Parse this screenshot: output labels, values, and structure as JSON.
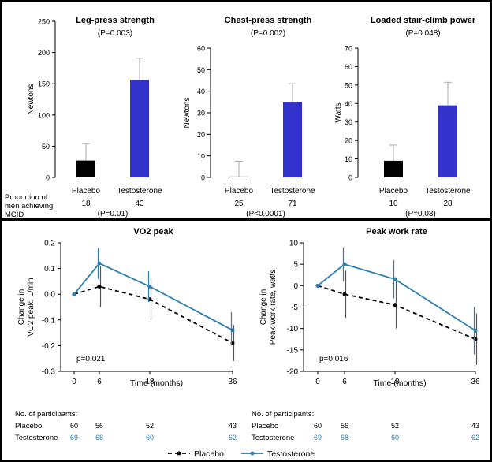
{
  "colors": {
    "placebo": "#000000",
    "testosterone_bar": "#3333cc",
    "testosterone_line": "#2a7fae",
    "testosterone_count": "#2a7fae",
    "error": "#aaaaaa"
  },
  "top_row": {
    "proportion_label": [
      "Proportion of",
      "men achieving",
      "MCID"
    ],
    "panels": [
      {
        "title": "Leg-press strength",
        "pvalue": "(P=0.003)",
        "ylabel": "Newtons",
        "yticks": [
          "0",
          "50",
          "100",
          "150",
          "200",
          "250"
        ],
        "categories": [
          "Placebo",
          "Testosterone"
        ],
        "counts": [
          "18",
          "43"
        ],
        "mcid_p": "(P=0.01)"
      },
      {
        "title": "Chest-press strength",
        "pvalue": "(P=0.002)",
        "ylabel": "Newtons",
        "yticks": [
          "0",
          "10",
          "20",
          "30",
          "40",
          "50",
          "60"
        ],
        "categories": [
          "Placebo",
          "Testosterone"
        ],
        "counts": [
          "25",
          "71"
        ],
        "mcid_p": "(P<0.0001)"
      },
      {
        "title": "Loaded stair-climb power",
        "pvalue": "(P=0.048)",
        "ylabel": "Watts",
        "yticks": [
          "0",
          "10",
          "20",
          "30",
          "40",
          "50",
          "60",
          "70"
        ],
        "categories": [
          "Placebo",
          "Testosterone"
        ],
        "counts": [
          "10",
          "28"
        ],
        "mcid_p": "(P=0.03)"
      }
    ]
  },
  "bottom_row": {
    "panels": [
      {
        "title": "VO2 peak",
        "ylabel": [
          "Change in",
          "VO2 peak, L/min"
        ],
        "pvalue": "p=0.021",
        "yticks": [
          "-0.3",
          "-0.2",
          "-0.1",
          "0.0",
          "0.1",
          "0.2"
        ],
        "xticks": [
          "0",
          "6",
          "18",
          "36"
        ],
        "xlabel": "Time (months)"
      },
      {
        "title": "Peak work rate",
        "ylabel": [
          "Change in",
          "Peak work rate, watts"
        ],
        "pvalue": "p=0.016",
        "yticks": [
          "-20",
          "-15",
          "-10",
          "-5",
          "0",
          "5",
          "10"
        ],
        "xticks": [
          "0",
          "6",
          "18",
          "36"
        ],
        "xlabel": "Time (months)"
      }
    ],
    "participants": {
      "heading": "No. of participants:",
      "placebo_label": "Placebo",
      "testosterone_label": "Testosterone",
      "placebo_counts": [
        "60",
        "56",
        "52",
        "43"
      ],
      "testosterone_counts": [
        "69",
        "68",
        "60",
        "62"
      ]
    },
    "legend": {
      "placebo": "Placebo",
      "testosterone": "Testosterone"
    }
  },
  "chart_data": [
    {
      "type": "bar",
      "title": "Leg-press strength",
      "ylabel": "Newtons",
      "ylim": [
        0,
        250
      ],
      "categories": [
        "Placebo",
        "Testosterone"
      ],
      "values": [
        27,
        156
      ],
      "error_upper": [
        54,
        191
      ],
      "colors": [
        "#000000",
        "#3333cc"
      ]
    },
    {
      "type": "bar",
      "title": "Chest-press strength",
      "ylabel": "Newtons",
      "ylim": [
        0,
        60
      ],
      "categories": [
        "Placebo",
        "Testosterone"
      ],
      "values": [
        0.4,
        35
      ],
      "error_upper": [
        7.5,
        43.5
      ],
      "colors": [
        "#000000",
        "#3333cc"
      ]
    },
    {
      "type": "bar",
      "title": "Loaded stair-climb power",
      "ylabel": "Watts",
      "ylim": [
        0,
        70
      ],
      "categories": [
        "Placebo",
        "Testosterone"
      ],
      "values": [
        9,
        39
      ],
      "error_upper": [
        17.5,
        51.5
      ],
      "colors": [
        "#000000",
        "#3333cc"
      ]
    },
    {
      "type": "line",
      "title": "VO2 peak",
      "xlabel": "Time (months)",
      "ylim": [
        -0.3,
        0.2
      ],
      "x": [
        0,
        6,
        18,
        36
      ],
      "series": [
        {
          "name": "Placebo",
          "values": [
            0,
            0.03,
            -0.02,
            -0.19
          ],
          "lower": [
            0,
            -0.05,
            -0.1,
            -0.26
          ],
          "upper": [
            0,
            0.11,
            0.06,
            -0.12
          ],
          "style": "dashed"
        },
        {
          "name": "Testosterone",
          "values": [
            0,
            0.12,
            0.03,
            -0.14
          ],
          "lower": [
            0,
            0.06,
            -0.03,
            -0.2
          ],
          "upper": [
            0,
            0.18,
            0.09,
            -0.07
          ],
          "style": "solid"
        }
      ]
    },
    {
      "type": "line",
      "title": "Peak work rate",
      "xlabel": "Time (months)",
      "ylim": [
        -20,
        10
      ],
      "x": [
        0,
        6,
        18,
        36
      ],
      "series": [
        {
          "name": "Placebo",
          "values": [
            0,
            -2,
            -4.5,
            -12.5
          ],
          "lower": [
            0,
            -7.5,
            -10,
            -18.5
          ],
          "upper": [
            0,
            3.5,
            1,
            -6.5
          ],
          "style": "dashed"
        },
        {
          "name": "Testosterone",
          "values": [
            0,
            5,
            1.5,
            -10.5
          ],
          "lower": [
            0,
            1,
            -3,
            -16
          ],
          "upper": [
            0,
            9,
            6,
            -5
          ],
          "style": "solid"
        }
      ]
    }
  ]
}
